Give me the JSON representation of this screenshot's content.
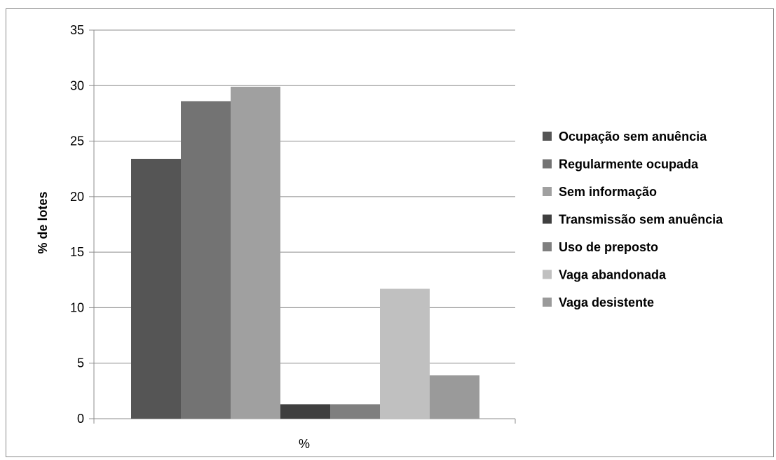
{
  "chart_data": {
    "type": "bar",
    "title": "",
    "xlabel": "%",
    "ylabel": "% de lotes",
    "categories": [
      "%"
    ],
    "ylim": [
      0,
      35
    ],
    "yticks": [
      0,
      5,
      10,
      15,
      20,
      25,
      30,
      35
    ],
    "grid": true,
    "legend_position": "right",
    "series": [
      {
        "name": "Ocupação sem anuência",
        "values": [
          23.4
        ],
        "color": "#555555"
      },
      {
        "name": "Regularmente ocupada",
        "values": [
          28.6
        ],
        "color": "#737373"
      },
      {
        "name": "Sem informação",
        "values": [
          29.9
        ],
        "color": "#a0a0a0"
      },
      {
        "name": "Transmissão sem anuência",
        "values": [
          1.3
        ],
        "color": "#3f3f3f"
      },
      {
        "name": "Uso de preposto",
        "values": [
          1.3
        ],
        "color": "#7f7f7f"
      },
      {
        "name": "Vaga abandonada",
        "values": [
          11.7
        ],
        "color": "#c0c0c0"
      },
      {
        "name": "Vaga desistente",
        "values": [
          3.9
        ],
        "color": "#9a9a9a"
      }
    ]
  }
}
